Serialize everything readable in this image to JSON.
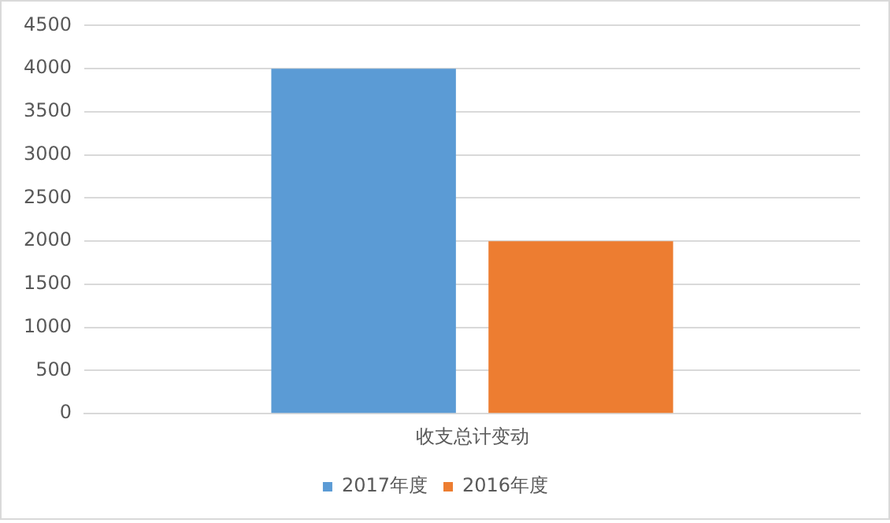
{
  "chart_data": {
    "type": "bar",
    "categories": [
      "收支总计变动"
    ],
    "series": [
      {
        "name": "2017年度",
        "color": "#5b9bd5",
        "values": [
          4000
        ]
      },
      {
        "name": "2016年度",
        "color": "#ed7d31",
        "values": [
          2000
        ]
      }
    ],
    "ylim": [
      0,
      4500
    ],
    "yticks": [
      0,
      500,
      1000,
      1500,
      2000,
      2500,
      3000,
      3500,
      4000,
      4500
    ],
    "grid": "y",
    "legend": "bottom"
  }
}
